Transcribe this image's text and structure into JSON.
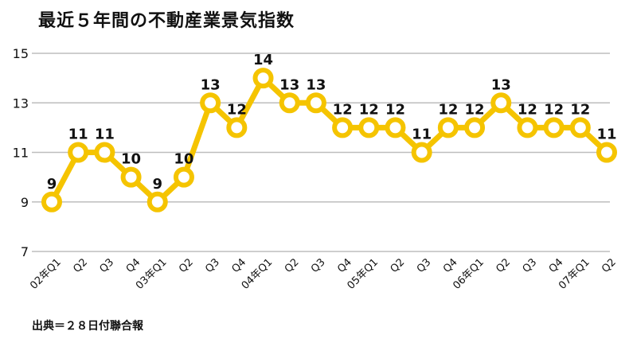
{
  "chart_data": {
    "type": "line",
    "title": "最近５年間の不動産業景気指数",
    "source": "出典＝２８日付聯合報",
    "ylim": [
      7,
      15
    ],
    "yticks": [
      7,
      9,
      11,
      13,
      15
    ],
    "grid": true,
    "categories": [
      "02年Q1",
      "Q2",
      "Q3",
      "Q4",
      "03年Q1",
      "Q2",
      "Q3",
      "Q4",
      "04年Q1",
      "Q2",
      "Q3",
      "Q4",
      "05年Q1",
      "Q2",
      "Q3",
      "Q4",
      "06年Q1",
      "Q2",
      "Q3",
      "Q4",
      "07年Q1",
      "Q2"
    ],
    "series": [
      {
        "values": [
          9,
          11,
          11,
          10,
          9,
          10,
          13,
          12,
          14,
          13,
          13,
          12,
          12,
          12,
          11,
          12,
          12,
          13,
          12,
          12,
          12,
          11
        ]
      }
    ],
    "line_color": "#f5c400"
  }
}
